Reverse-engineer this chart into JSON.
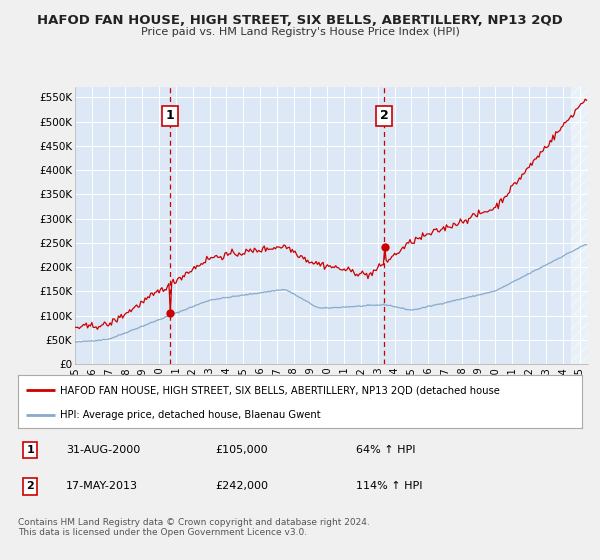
{
  "title": "HAFOD FAN HOUSE, HIGH STREET, SIX BELLS, ABERTILLERY, NP13 2QD",
  "subtitle": "Price paid vs. HM Land Registry's House Price Index (HPI)",
  "fig_bg_color": "#f0f0f0",
  "plot_bg_color": "#dce8f5",
  "grid_color": "#ffffff",
  "red_line_color": "#cc0000",
  "blue_line_color": "#88aacc",
  "purchase1_date_x": 2000.67,
  "purchase1_price": 105000,
  "purchase2_date_x": 2013.38,
  "purchase2_price": 242000,
  "xmin": 1995,
  "xmax": 2025.5,
  "ymin": 0,
  "ymax": 572000,
  "yticks": [
    0,
    50000,
    100000,
    150000,
    200000,
    250000,
    300000,
    350000,
    400000,
    450000,
    500000,
    550000
  ],
  "ytick_labels": [
    "£0",
    "£50K",
    "£100K",
    "£150K",
    "£200K",
    "£250K",
    "£300K",
    "£350K",
    "£400K",
    "£450K",
    "£500K",
    "£550K"
  ],
  "xtick_years": [
    1995,
    1996,
    1997,
    1998,
    1999,
    2000,
    2001,
    2002,
    2003,
    2004,
    2005,
    2006,
    2007,
    2008,
    2009,
    2010,
    2011,
    2012,
    2013,
    2014,
    2015,
    2016,
    2017,
    2018,
    2019,
    2020,
    2021,
    2022,
    2023,
    2024,
    2025
  ],
  "legend_red_label": "HAFOD FAN HOUSE, HIGH STREET, SIX BELLS, ABERTILLERY, NP13 2QD (detached house",
  "legend_blue_label": "HPI: Average price, detached house, Blaenau Gwent",
  "note1_num": "1",
  "note1_date": "31-AUG-2000",
  "note1_price": "£105,000",
  "note1_hpi": "64% ↑ HPI",
  "note2_num": "2",
  "note2_date": "17-MAY-2013",
  "note2_price": "£242,000",
  "note2_hpi": "114% ↑ HPI",
  "footer": "Contains HM Land Registry data © Crown copyright and database right 2024.\nThis data is licensed under the Open Government Licence v3.0."
}
